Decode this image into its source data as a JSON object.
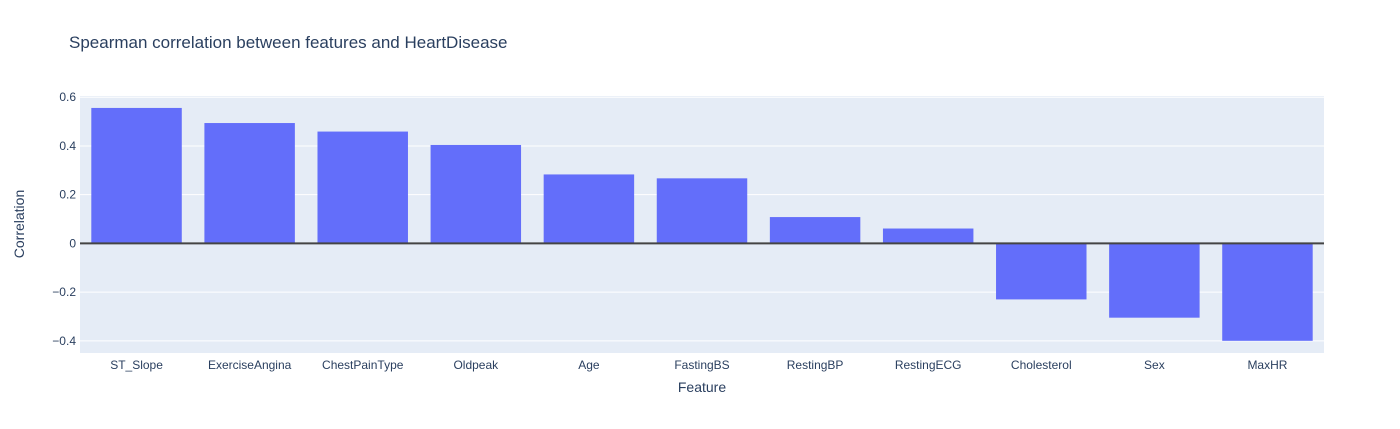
{
  "chart_data": {
    "type": "bar",
    "title": "Spearman correlation between features and HeartDisease",
    "xlabel": "Feature",
    "ylabel": "Correlation",
    "categories": [
      "ST_Slope",
      "ExerciseAngina",
      "ChestPainType",
      "Oldpeak",
      "Age",
      "FastingBS",
      "RestingBP",
      "RestingECG",
      "Cholesterol",
      "Sex",
      "MaxHR"
    ],
    "values": [
      0.556,
      0.494,
      0.459,
      0.404,
      0.283,
      0.267,
      0.108,
      0.061,
      -0.23,
      -0.305,
      -0.4
    ],
    "ylim": [
      -0.45,
      0.605
    ],
    "yticks": [
      -0.4,
      -0.2,
      0,
      0.2,
      0.4,
      0.6
    ],
    "ytick_labels": [
      "−0.4",
      "−0.2",
      "0",
      "0.2",
      "0.4",
      "0.6"
    ],
    "grid": true,
    "bar_color": "#636efa",
    "plot_bg": "#e5ecf6",
    "zero_line_color": "#444444"
  }
}
